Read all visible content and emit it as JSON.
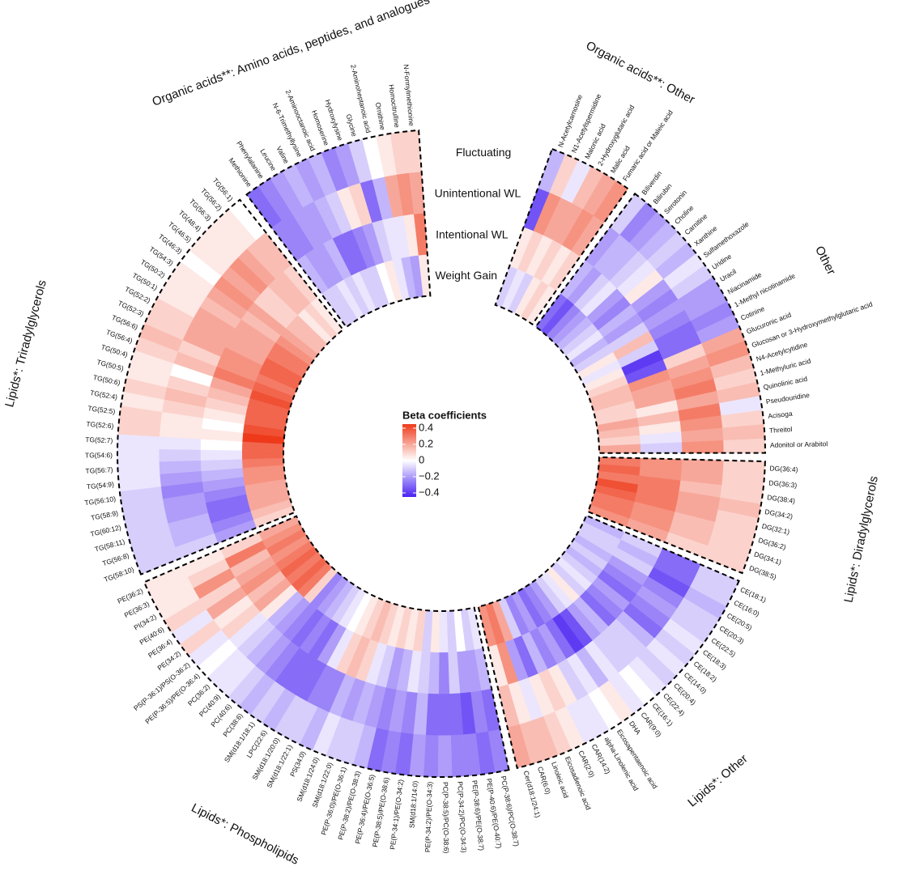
{
  "chart_data": {
    "type": "circular_heatmap",
    "rings": [
      "Weight Gain",
      "Intentional WL",
      "Unintentional WL",
      "Fluctuating"
    ],
    "clim": [
      -0.45,
      0.45
    ],
    "color_scale": {
      "low": "#4a22f2",
      "mid": "#ffffff",
      "high": "#ee3a1b"
    },
    "legend": {
      "title": "Beta coefficients",
      "ticks": [
        0.4,
        0.2,
        0,
        {
          "value": -0.2,
          "label": "−0.2"
        },
        {
          "value": -0.4,
          "label": "−0.4"
        }
      ]
    },
    "groups": [
      {
        "name": "Organic acids**: Other",
        "categories": [
          "N-Acetylcarnosine",
          "N1-Acetylspermidine",
          "Malonic acid",
          "2-Hydroxyglutaric acid",
          "Malic acid",
          "Fumaric acid or Maleic acid"
        ],
        "values": [
          [
            -0.1,
            0.05,
            -0.35,
            -0.15
          ],
          [
            -0.05,
            0.1,
            0.25,
            0.1
          ],
          [
            -0.1,
            0.05,
            0.2,
            -0.05
          ],
          [
            0.05,
            0.1,
            0.2,
            0.15
          ],
          [
            0.1,
            0.05,
            0.25,
            0.2
          ],
          [
            0.05,
            0.1,
            0.2,
            0.25
          ]
        ]
      },
      {
        "name": "Other",
        "categories": [
          "Biliverdin",
          "Bilirubin",
          "Serotonin",
          "Choline",
          "Carnitine",
          "Xanthine",
          "Sulfamethoxazole",
          "Uridine",
          "Uracil",
          "Niacinamide",
          "1-Methyl nicotinamide",
          "Cotinine",
          "Glucuronic acid",
          "Glucosan or 3-Hydroxymethylglutaric acid",
          "N4-Acetylcytidine",
          "1-Methyluric acid",
          "Quinolinic acid",
          "Pseudouridine",
          "Acisoga",
          "Threitol",
          "Adonitol or Arabitol"
        ],
        "values": [
          [
            -0.3,
            -0.15,
            -0.2,
            -0.1
          ],
          [
            -0.35,
            -0.2,
            -0.15,
            -0.25
          ],
          [
            -0.25,
            -0.1,
            -0.15,
            -0.2
          ],
          [
            -0.2,
            -0.05,
            -0.1,
            -0.15
          ],
          [
            -0.15,
            -0.2,
            -0.05,
            -0.1
          ],
          [
            -0.1,
            -0.25,
            0.05,
            -0.15
          ],
          [
            -0.05,
            -0.15,
            -0.2,
            -0.05
          ],
          [
            -0.15,
            -0.2,
            -0.25,
            -0.1
          ],
          [
            -0.1,
            -0.1,
            -0.2,
            -0.2
          ],
          [
            0.05,
            0.15,
            -0.25,
            -0.2
          ],
          [
            -0.05,
            -0.1,
            -0.3,
            -0.25
          ],
          [
            0.05,
            -0.4,
            -0.3,
            -0.2
          ],
          [
            0.1,
            -0.35,
            0.1,
            0.2
          ],
          [
            0.15,
            0.25,
            0.2,
            0.25
          ],
          [
            0.15,
            0.2,
            0.25,
            0.15
          ],
          [
            0.1,
            0.2,
            0.3,
            0.1
          ],
          [
            0.1,
            0.05,
            0.2,
            0.15
          ],
          [
            0.2,
            0.15,
            0.3,
            -0.05
          ],
          [
            0.15,
            0.05,
            0.25,
            0.1
          ],
          [
            0.1,
            -0.05,
            0.2,
            0.15
          ],
          [
            0.2,
            -0.1,
            0.25,
            0.1
          ]
        ]
      },
      {
        "name": "Lipids*: Diradylglycerols",
        "categories": [
          "DG(36:4)",
          "DG(36:3)",
          "DG(38:4)",
          "DG(34:2)",
          "DG(32:1)",
          "DG(36:2)",
          "DG(34:1)",
          "DG(38:5)"
        ],
        "values": [
          [
            0.3,
            0.25,
            0.2,
            0.1
          ],
          [
            0.35,
            0.25,
            0.2,
            0.1
          ],
          [
            0.3,
            0.3,
            0.15,
            0.1
          ],
          [
            0.4,
            0.3,
            0.2,
            0.15
          ],
          [
            0.35,
            0.3,
            0.2,
            0.1
          ],
          [
            0.3,
            0.25,
            0.15,
            0.1
          ],
          [
            0.3,
            0.25,
            0.15,
            0.1
          ],
          [
            0.25,
            0.2,
            0.1,
            0.1
          ]
        ]
      },
      {
        "name": "Lipids*: Other",
        "categories": [
          "CE(18:1)",
          "CE(16:0)",
          "CE(20:5)",
          "CE(20:3)",
          "CE(22:5)",
          "CE(18:3)",
          "CE(18:2)",
          "CE(14:0)",
          "CE(20:4)",
          "CE(22:4)",
          "CE(16:1)",
          "CAR(9:0)",
          "DHA",
          "Eicosapentaenoic acid",
          "alpha-Linolenic acid",
          "CAR(14:2)",
          "CAR(2:0)",
          "Eicosadienoic acid",
          "Linoleic acid",
          "CAR(6:0)",
          "Cer(d18:1/24:1)"
        ],
        "values": [
          [
            -0.15,
            -0.1,
            -0.3,
            -0.1
          ],
          [
            -0.1,
            -0.15,
            -0.3,
            -0.1
          ],
          [
            -0.1,
            -0.1,
            -0.35,
            -0.15
          ],
          [
            -0.15,
            -0.2,
            -0.25,
            -0.1
          ],
          [
            -0.1,
            -0.25,
            -0.2,
            -0.1
          ],
          [
            -0.15,
            -0.3,
            -0.25,
            -0.05
          ],
          [
            -0.1,
            -0.2,
            -0.3,
            -0.1
          ],
          [
            -0.05,
            -0.25,
            -0.15,
            -0.05
          ],
          [
            -0.1,
            -0.3,
            -0.1,
            -0.1
          ],
          [
            0.05,
            -0.15,
            -0.1,
            -0.05
          ],
          [
            -0.05,
            -0.2,
            -0.1,
            0
          ],
          [
            -0.1,
            -0.35,
            -0.05,
            -0.05
          ],
          [
            -0.2,
            -0.4,
            -0.15,
            0.05
          ],
          [
            -0.25,
            -0.3,
            -0.05,
            0
          ],
          [
            -0.3,
            -0.2,
            -0.1,
            -0.05
          ],
          [
            -0.2,
            -0.25,
            0.05,
            -0.05
          ],
          [
            -0.25,
            -0.15,
            0.1,
            0.05
          ],
          [
            -0.1,
            -0.3,
            0.05,
            0.1
          ],
          [
            0.2,
            -0.2,
            -0.05,
            0.15
          ],
          [
            0.3,
            0.25,
            0.05,
            0.15
          ],
          [
            0.25,
            0.05,
            0.15,
            0.2
          ]
        ]
      },
      {
        "name": "Lipids*: Phospholipids",
        "categories": [
          "PC(P-38:6)/PC(O-38:7)",
          "PE(P-40:6)/PE(O-40:7)",
          "PE(P-38:6)/PE(O-38:7)",
          "PC(P-34:2)/PC(O-34:3)",
          "PC(P-38:5)/PC(O-38:6)",
          "PE(P-34:2)/PE(O-34:3)",
          "SM(d18:1/14:0)",
          "PE(P-34:1)/PE(O-34:2)",
          "PE(P-38:5)/PE(O-38:6)",
          "PE(P-36:4)/PE(O-36:5)",
          "PE(P-38:2)/PE(O-38:3)",
          "PE(P-36:0)/PE(O-36:1)",
          "SM(d18:1/22:0)",
          "SM(d18:1/24:0)",
          "PS(34:0)",
          "SM(d18:1/22:1)",
          "SM(d18:1/20:0)",
          "LPC(22:6)",
          "SM(d18:1/18:1)",
          "PC(38:6)",
          "PC(40:6)",
          "PC(40:9)",
          "PC(36:2)",
          "PE(P-36:5)/PE(O-36:4)",
          "PS(P-36:1)/PS(O-36:2)",
          "PE(34:2)",
          "PE(36:4)",
          "PE(40:6)",
          "PI(34:2)",
          "PE(36:3)",
          "PE(36:2)"
        ],
        "values": [
          [
            -0.05,
            -0.15,
            -0.3,
            -0.25
          ],
          [
            -0.1,
            -0.2,
            -0.25,
            -0.3
          ],
          [
            0,
            -0.2,
            -0.35,
            -0.25
          ],
          [
            -0.1,
            -0.1,
            -0.3,
            -0.25
          ],
          [
            -0.05,
            -0.25,
            -0.3,
            -0.2
          ],
          [
            0.05,
            -0.15,
            -0.3,
            -0.25
          ],
          [
            -0.1,
            -0.1,
            -0.15,
            -0.2
          ],
          [
            0.1,
            -0.05,
            -0.25,
            -0.3
          ],
          [
            0.05,
            -0.15,
            -0.2,
            -0.25
          ],
          [
            0.1,
            -0.2,
            -0.25,
            -0.3
          ],
          [
            0.05,
            -0.1,
            -0.2,
            -0.15
          ],
          [
            0.1,
            -0.05,
            -0.15,
            -0.1
          ],
          [
            0.15,
            0.1,
            -0.2,
            -0.1
          ],
          [
            0.1,
            0.15,
            -0.15,
            -0.05
          ],
          [
            0.05,
            0.1,
            -0.25,
            -0.15
          ],
          [
            0,
            -0.05,
            -0.25,
            -0.1
          ],
          [
            -0.05,
            -0.2,
            -0.3,
            -0.1
          ],
          [
            -0.1,
            -0.3,
            -0.3,
            -0.15
          ],
          [
            -0.15,
            -0.25,
            -0.3,
            -0.1
          ],
          [
            -0.2,
            -0.3,
            -0.25,
            -0.15
          ],
          [
            -0.25,
            -0.25,
            -0.2,
            -0.1
          ],
          [
            0.1,
            -0.2,
            -0.15,
            -0.05
          ],
          [
            0.3,
            -0.15,
            -0.1,
            -0.05
          ],
          [
            0.35,
            0.05,
            -0.05,
            0
          ],
          [
            0.3,
            0.2,
            0.1,
            -0.05
          ],
          [
            0.35,
            0.15,
            0.05,
            0.1
          ],
          [
            0.3,
            0.25,
            0.2,
            -0.05
          ],
          [
            0.25,
            0.2,
            0.1,
            0.1
          ],
          [
            0.3,
            0.15,
            0.25,
            0.05
          ],
          [
            0.25,
            0.3,
            0.1,
            0.05
          ],
          [
            0.2,
            0.1,
            0.05,
            0.05
          ]
        ]
      },
      {
        "name": "Lipids*: Triradylglycerols",
        "categories": [
          "TG(58:10)",
          "TG(56:8)",
          "TG(58:11)",
          "TG(60:12)",
          "TG(58:9)",
          "TG(56:10)",
          "TG(54:9)",
          "TG(56:7)",
          "TG(54:6)",
          "TG(52:7)",
          "TG(52:6)",
          "TG(52:5)",
          "TG(52:4)",
          "TG(50:6)",
          "TG(50:5)",
          "TG(50:4)",
          "TG(56:4)",
          "TG(56:6)",
          "TG(52:3)",
          "TG(52:2)",
          "TG(50:1)",
          "TG(50:2)",
          "TG(54:3)",
          "TG(46:3)",
          "TG(46:5)",
          "TG(48:4)",
          "TG(56:3)",
          "TG(56:2)",
          "TG(56:1)"
        ],
        "values": [
          [
            0.1,
            -0.2,
            -0.1,
            -0.1
          ],
          [
            0.15,
            -0.25,
            -0.15,
            -0.1
          ],
          [
            0.2,
            -0.3,
            -0.15,
            -0.1
          ],
          [
            0.2,
            -0.3,
            -0.2,
            -0.1
          ],
          [
            0.2,
            -0.25,
            -0.2,
            -0.1
          ],
          [
            0.25,
            -0.2,
            -0.25,
            -0.1
          ],
          [
            0.25,
            -0.15,
            -0.2,
            -0.05
          ],
          [
            0.3,
            -0.1,
            -0.15,
            -0.05
          ],
          [
            0.35,
            -0.05,
            -0.1,
            -0.05
          ],
          [
            0.35,
            0,
            -0.05,
            -0.05
          ],
          [
            0.45,
            0.05,
            0.05,
            0.1
          ],
          [
            0.4,
            0,
            0.05,
            0.1
          ],
          [
            0.35,
            0.05,
            0.1,
            0.05
          ],
          [
            0.35,
            0.1,
            0.15,
            0.1
          ],
          [
            0.35,
            0.15,
            0.1,
            0.05
          ],
          [
            0.4,
            0.2,
            0,
            0.05
          ],
          [
            0.35,
            0.3,
            0.15,
            0.1
          ],
          [
            0.3,
            0.25,
            0.1,
            0.15
          ],
          [
            0.35,
            0.25,
            0.2,
            0.1
          ],
          [
            0.35,
            0.2,
            0.2,
            0.1
          ],
          [
            0.3,
            0.2,
            0.2,
            0.05
          ],
          [
            0.3,
            0.2,
            0.15,
            0.05
          ],
          [
            0.25,
            0.15,
            0.2,
            0.05
          ],
          [
            0.2,
            0.2,
            0.25,
            0
          ],
          [
            0.15,
            0.1,
            0.2,
            0.05
          ],
          [
            0.15,
            0.1,
            0.25,
            0.05
          ],
          [
            0.05,
            0.15,
            0.2,
            0.05
          ],
          [
            0.1,
            0.15,
            0.15,
            0.05
          ],
          [
            0.05,
            0.1,
            0.15,
            0
          ]
        ]
      },
      {
        "name": "Organic acids**: Amino acids, peptides, and analogues",
        "categories": [
          "Methionine",
          "Phenylalanine",
          "Leucine",
          "Valine",
          "N-6-Trimethyllysine",
          "2-Aminooctanoic acid",
          "Homoserine",
          "Hydroxylysine",
          "Glycine",
          "2-Aminoheptanoic acid",
          "Ornithine",
          "Homocitrulline",
          "N-Formylmethionine"
        ],
        "values": [
          [
            -0.1,
            -0.15,
            -0.25,
            -0.3
          ],
          [
            -0.1,
            -0.2,
            -0.25,
            -0.25
          ],
          [
            -0.05,
            -0.2,
            -0.2,
            -0.2
          ],
          [
            -0.1,
            -0.15,
            -0.2,
            -0.15
          ],
          [
            -0.05,
            -0.3,
            -0.15,
            -0.2
          ],
          [
            -0.1,
            -0.3,
            -0.1,
            -0.15
          ],
          [
            -0.1,
            -0.25,
            0.05,
            -0.25
          ],
          [
            0,
            -0.2,
            0.1,
            -0.2
          ],
          [
            0.05,
            -0.1,
            -0.3,
            -0.1
          ],
          [
            -0.05,
            -0.05,
            -0.15,
            0
          ],
          [
            -0.15,
            -0.05,
            0.2,
            0.05
          ],
          [
            -0.2,
            0.05,
            0.25,
            0.1
          ],
          [
            0.05,
            0.3,
            0.2,
            0.1
          ]
        ]
      }
    ]
  }
}
